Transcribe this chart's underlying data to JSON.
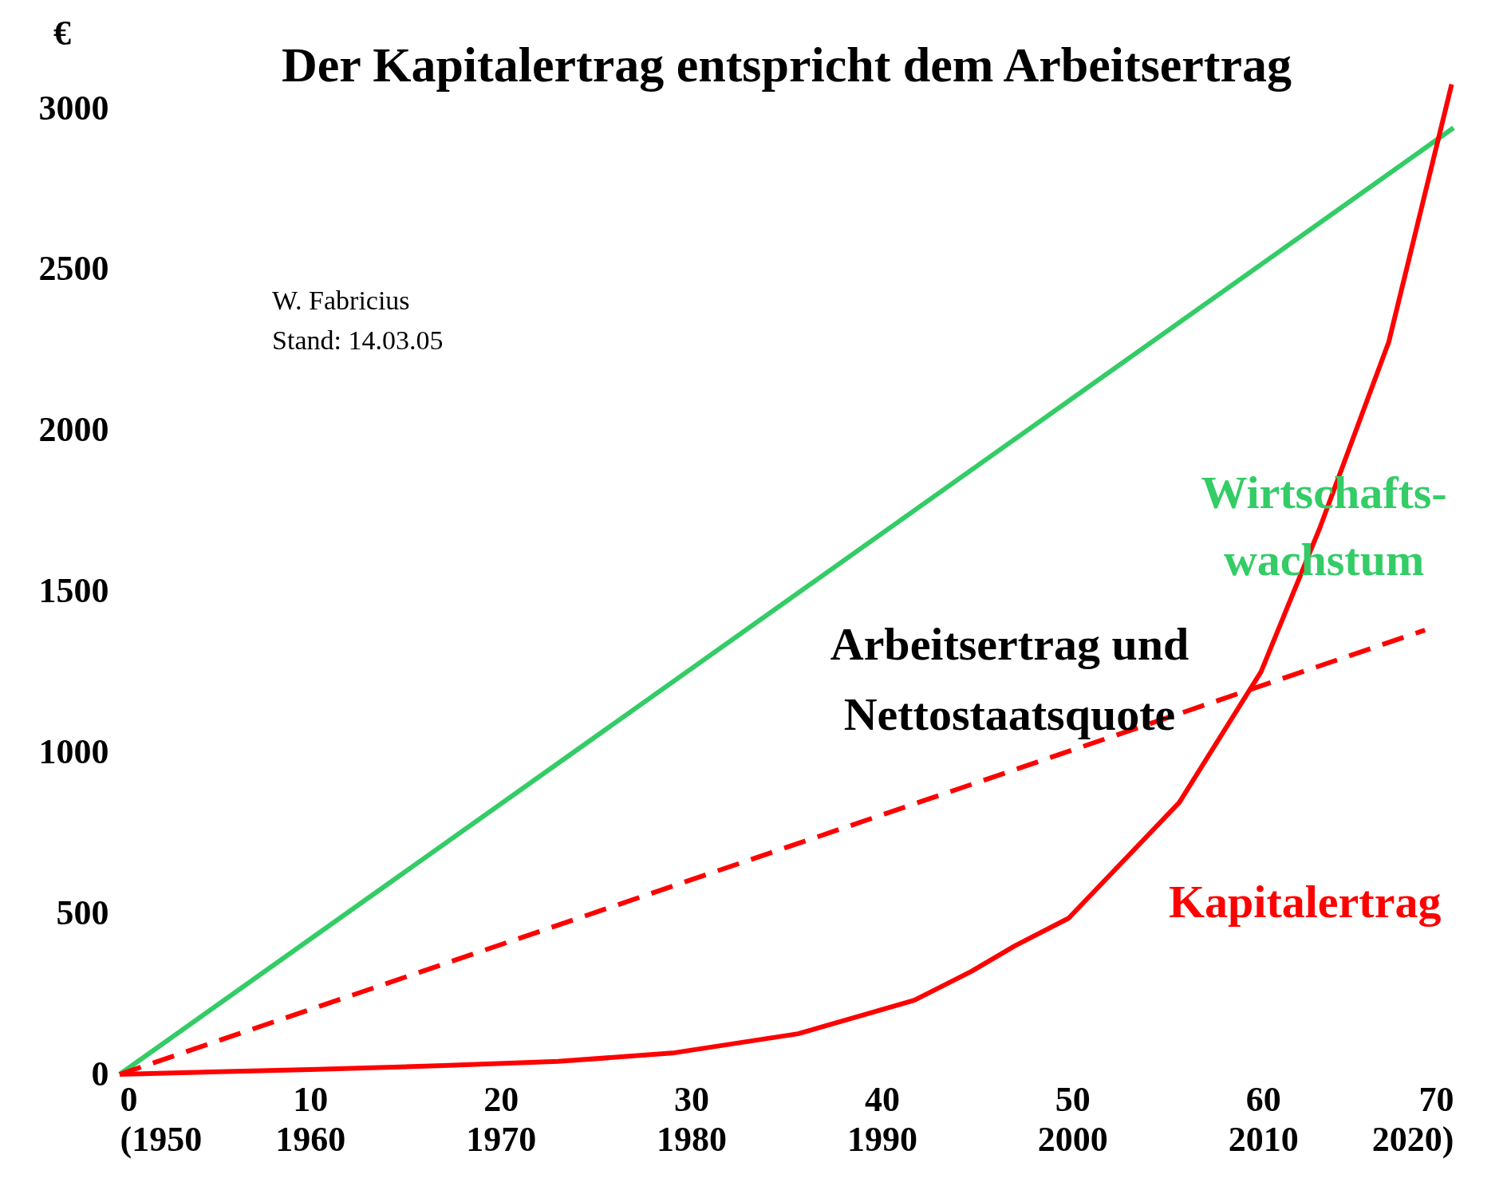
{
  "chart_data": {
    "type": "line",
    "title": "Der Kapitalertrag entspricht dem Arbeitsertrag",
    "ylabel": "€",
    "xlim": [
      0,
      70
    ],
    "ylim": [
      0,
      3300
    ],
    "xticks": [
      0,
      10,
      20,
      30,
      40,
      50,
      60,
      70
    ],
    "x2lim": [
      1950,
      2020
    ],
    "x2ticks": [
      {
        "value": 1950,
        "label": "(1950"
      },
      1960,
      1970,
      1980,
      1990,
      2000,
      2010,
      {
        "value": 2020,
        "label": "2020)"
      }
    ],
    "yticks": [
      0,
      500,
      1000,
      1500,
      2000,
      2500,
      3000
    ],
    "grid": false,
    "marker": "none",
    "series": [
      {
        "name": "Wirtschafts-\nwachstum",
        "color": "#33cc66",
        "x": [
          0,
          70
        ],
        "values": [
          0,
          2940
        ]
      },
      {
        "color": "#ff0000",
        "line_style": "dashed",
        "x": [
          0,
          68.5
        ],
        "values": [
          0,
          1380
        ]
      },
      {
        "name": "Kapitalertrag",
        "color": "#ff0000",
        "x": [
          0,
          10,
          17,
          23,
          29,
          35.6,
          41.7,
          44.7,
          47,
          49.8,
          55.6,
          59.9,
          63,
          66.6,
          69.9
        ],
        "values": [
          0,
          15,
          27,
          40,
          66,
          126,
          230,
          320,
          400,
          485,
          844,
          1251,
          1700,
          2275,
          3075
        ]
      }
    ],
    "annotations": [
      "W. Fabricius\nStand: 14.03.05",
      "Arbeitsertrag und\nNettostaatsquote"
    ]
  }
}
